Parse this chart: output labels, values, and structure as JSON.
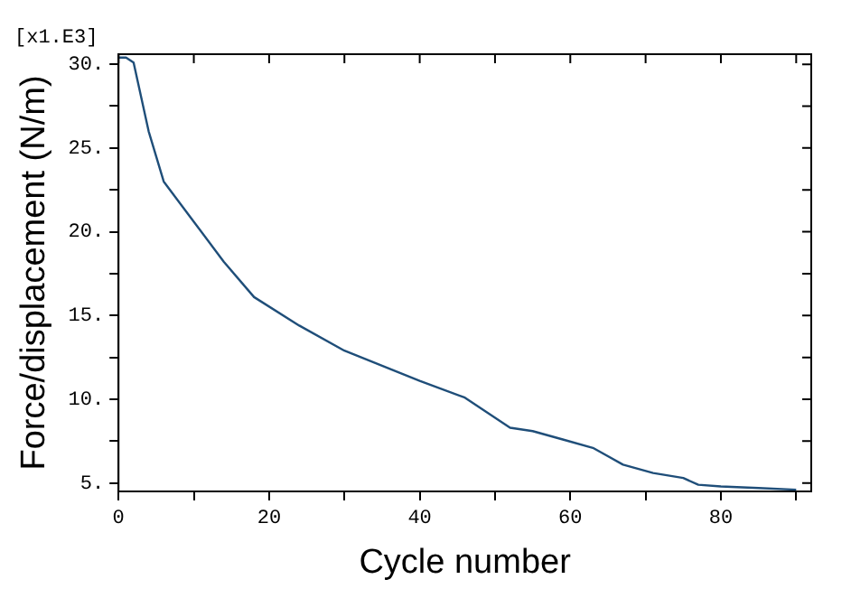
{
  "chart_data": {
    "type": "line",
    "xlabel": "Cycle number",
    "ylabel": "Force/displacement (N/m)",
    "annotations": [
      "[x1.E3]"
    ],
    "x": [
      0,
      1,
      2,
      4,
      6,
      10,
      14,
      18,
      24,
      30,
      40,
      46,
      52,
      55,
      59,
      63,
      67,
      71,
      75,
      77,
      80,
      85,
      90
    ],
    "series": [
      {
        "color": "#1f4e79",
        "values": [
          30.4,
          30.4,
          30.1,
          26,
          23,
          20.6,
          18.2,
          16.1,
          14.4,
          12.9,
          11.1,
          10.1,
          8.3,
          8.1,
          7.6,
          7.1,
          6.1,
          5.6,
          5.3,
          4.9,
          4.8,
          4.7,
          4.6
        ]
      }
    ],
    "xlim": [
      0,
      92
    ],
    "xticks": [
      0,
      {
        "value": 10,
        "label": null
      },
      20,
      {
        "value": 30,
        "label": null
      },
      40,
      {
        "value": 50,
        "label": null
      },
      60,
      {
        "value": 70,
        "label": null
      },
      80,
      {
        "value": 90,
        "label": null
      }
    ],
    "ylim": [
      4.5,
      30.6
    ],
    "yticks": [
      {
        "value": 5,
        "label": "5."
      },
      {
        "value": 7.5,
        "label": null
      },
      {
        "value": 10,
        "label": "10."
      },
      {
        "value": 12.5,
        "label": null
      },
      {
        "value": 15,
        "label": "15."
      },
      {
        "value": 17.5,
        "label": null
      },
      {
        "value": 20,
        "label": "20."
      },
      {
        "value": 22.5,
        "label": null
      },
      {
        "value": 25,
        "label": "25."
      },
      {
        "value": 27.5,
        "label": null
      },
      {
        "value": 30,
        "label": "30."
      }
    ],
    "grid": false,
    "legend": false,
    "marker": "none",
    "line_style": "solid"
  }
}
